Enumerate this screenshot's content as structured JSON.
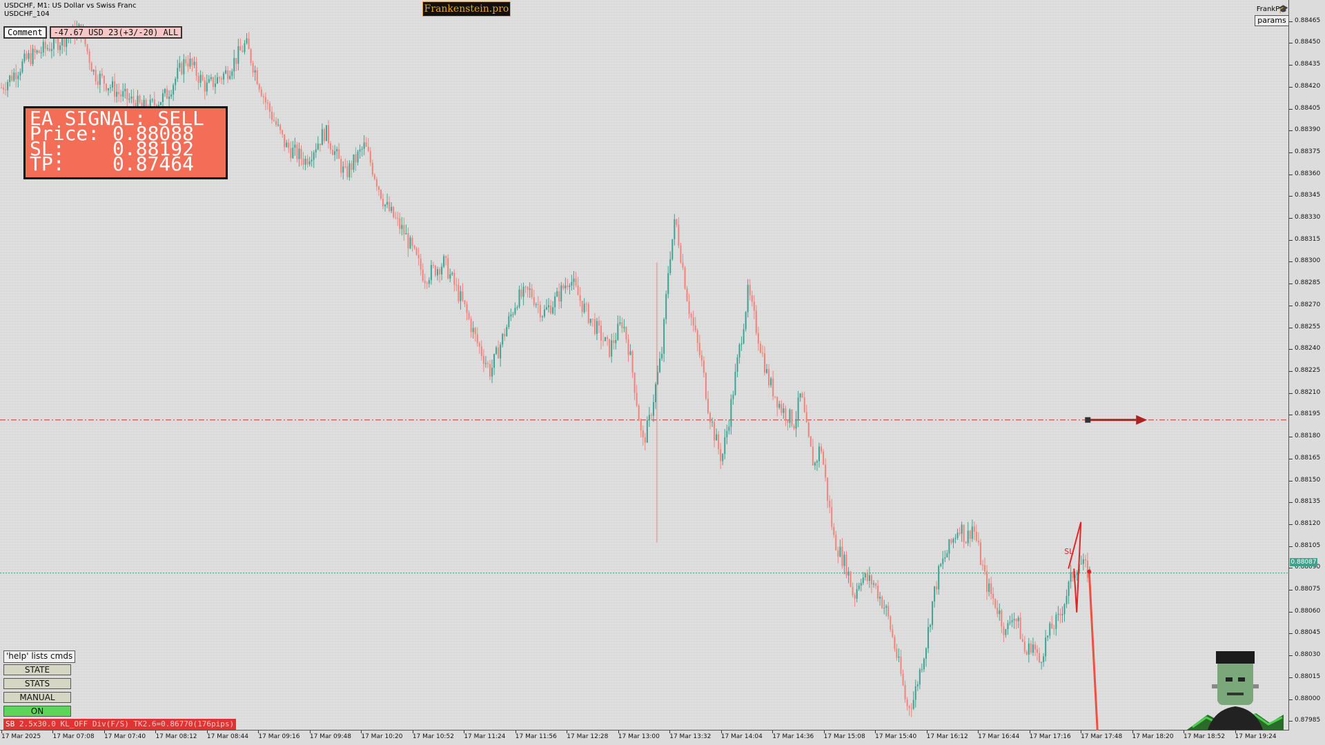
{
  "header": {
    "symbol_line": "USDCHF, M1:  US Dollar vs Swiss Franc",
    "ea_line": "USDCHF_104",
    "brand": "Frankenstein.pro",
    "frankpro": "FrankPro",
    "params_label": "params"
  },
  "comment": {
    "label": "Comment",
    "value": "-47.67 USD 23(+3/-20) ALL"
  },
  "signal": {
    "title": "EA SIGNAL: SELL",
    "price_label": "Price:",
    "price": "0.88088",
    "sl_label": "SL:",
    "sl": "0.88192",
    "tp_label": "TP:",
    "tp": "0.87464"
  },
  "controls": {
    "help": "'help' lists cmds",
    "state": "STATE",
    "stats": "STATS",
    "manual": "MANUAL",
    "on": "ON"
  },
  "status_bar": {
    "tag": "SB",
    "text": " 2.5x30.0 KL_OFF Div(F/S) TK2.6=0.86770(176pips)"
  },
  "chart_label": {
    "sl_marker": "SL"
  },
  "current_price_tag": "0.88087",
  "colors": {
    "up": "#3aa392",
    "down": "#f2837a",
    "sl_line": "#d62a2a",
    "price_line": "#2aa37a",
    "signal_bg": "#f46d56"
  },
  "chart_data": {
    "type": "candlestick",
    "symbol": "USDCHF",
    "timeframe": "M1",
    "y_ticks": [
      "0.88465",
      "0.88450",
      "0.88435",
      "0.88420",
      "0.88405",
      "0.88390",
      "0.88375",
      "0.88360",
      "0.88345",
      "0.88330",
      "0.88315",
      "0.88300",
      "0.88285",
      "0.88270",
      "0.88255",
      "0.88240",
      "0.88225",
      "0.88210",
      "0.88195",
      "0.88180",
      "0.88165",
      "0.88150",
      "0.88135",
      "0.88120",
      "0.88105",
      "0.88090",
      "0.88075",
      "0.88060",
      "0.88045",
      "0.88030",
      "0.88015",
      "0.88000",
      "0.87985"
    ],
    "x_ticks": [
      "17 Mar 2025",
      "17 Mar 07:08",
      "17 Mar 07:40",
      "17 Mar 08:12",
      "17 Mar 08:44",
      "17 Mar 09:16",
      "17 Mar 09:48",
      "17 Mar 10:20",
      "17 Mar 10:52",
      "17 Mar 11:24",
      "17 Mar 11:56",
      "17 Mar 12:28",
      "17 Mar 13:00",
      "17 Mar 13:32",
      "17 Mar 14:04",
      "17 Mar 14:36",
      "17 Mar 15:08",
      "17 Mar 15:40",
      "17 Mar 16:12",
      "17 Mar 16:44",
      "17 Mar 17:16",
      "17 Mar 17:48",
      "17 Mar 18:20",
      "17 Mar 18:52",
      "17 Mar 19:24"
    ],
    "ylim": [
      0.87979,
      0.8848
    ],
    "price_path": [
      [
        0,
        0.8842
      ],
      [
        0.02,
        0.8844
      ],
      [
        0.04,
        0.8845
      ],
      [
        0.06,
        0.8846
      ],
      [
        0.07,
        0.8843
      ],
      [
        0.09,
        0.88415
      ],
      [
        0.11,
        0.88405
      ],
      [
        0.125,
        0.88415
      ],
      [
        0.14,
        0.8844
      ],
      [
        0.155,
        0.8842
      ],
      [
        0.17,
        0.8843
      ],
      [
        0.185,
        0.8845
      ],
      [
        0.2,
        0.8841
      ],
      [
        0.215,
        0.8838
      ],
      [
        0.23,
        0.8837
      ],
      [
        0.245,
        0.8839
      ],
      [
        0.26,
        0.8836
      ],
      [
        0.275,
        0.8838
      ],
      [
        0.29,
        0.8834
      ],
      [
        0.305,
        0.8832
      ],
      [
        0.32,
        0.8829
      ],
      [
        0.335,
        0.883
      ],
      [
        0.35,
        0.8827
      ],
      [
        0.36,
        0.88245
      ],
      [
        0.37,
        0.88225
      ],
      [
        0.38,
        0.8825
      ],
      [
        0.39,
        0.88275
      ],
      [
        0.4,
        0.8828
      ],
      [
        0.41,
        0.88265
      ],
      [
        0.42,
        0.88275
      ],
      [
        0.43,
        0.8829
      ],
      [
        0.44,
        0.8827
      ],
      [
        0.45,
        0.88255
      ],
      [
        0.46,
        0.8824
      ],
      [
        0.47,
        0.8826
      ],
      [
        0.475,
        0.8824
      ],
      [
        0.48,
        0.8821
      ],
      [
        0.485,
        0.88175
      ],
      [
        0.49,
        0.8819
      ],
      [
        0.5,
        0.8824
      ],
      [
        0.505,
        0.883
      ],
      [
        0.51,
        0.8833
      ],
      [
        0.515,
        0.883
      ],
      [
        0.52,
        0.8827
      ],
      [
        0.53,
        0.8823
      ],
      [
        0.535,
        0.882
      ],
      [
        0.54,
        0.8818
      ],
      [
        0.545,
        0.88165
      ],
      [
        0.55,
        0.8819
      ],
      [
        0.56,
        0.8825
      ],
      [
        0.565,
        0.8828
      ],
      [
        0.57,
        0.8826
      ],
      [
        0.58,
        0.8822
      ],
      [
        0.59,
        0.882
      ],
      [
        0.6,
        0.8819
      ],
      [
        0.605,
        0.8821
      ],
      [
        0.61,
        0.8818
      ],
      [
        0.615,
        0.8816
      ],
      [
        0.62,
        0.88175
      ],
      [
        0.625,
        0.8814
      ],
      [
        0.63,
        0.8811
      ],
      [
        0.64,
        0.8809
      ],
      [
        0.645,
        0.8807
      ],
      [
        0.65,
        0.88085
      ],
      [
        0.66,
        0.8808
      ],
      [
        0.67,
        0.8806
      ],
      [
        0.675,
        0.8804
      ],
      [
        0.68,
        0.8802
      ],
      [
        0.685,
        0.87995
      ],
      [
        0.69,
        0.88
      ],
      [
        0.7,
        0.8804
      ],
      [
        0.705,
        0.8807
      ],
      [
        0.71,
        0.8809
      ],
      [
        0.715,
        0.881
      ],
      [
        0.72,
        0.8811
      ],
      [
        0.725,
        0.8812
      ],
      [
        0.73,
        0.8811
      ],
      [
        0.735,
        0.8812
      ],
      [
        0.74,
        0.881
      ],
      [
        0.745,
        0.8808
      ],
      [
        0.75,
        0.8807
      ],
      [
        0.755,
        0.8806
      ],
      [
        0.76,
        0.88045
      ],
      [
        0.765,
        0.8806
      ],
      [
        0.77,
        0.8805
      ],
      [
        0.775,
        0.8803
      ],
      [
        0.78,
        0.8804
      ],
      [
        0.785,
        0.88025
      ],
      [
        0.79,
        0.8804
      ],
      [
        0.795,
        0.8805
      ],
      [
        0.8,
        0.88055
      ],
      [
        0.805,
        0.8807
      ],
      [
        0.81,
        0.88085
      ],
      [
        0.815,
        0.88095
      ],
      [
        0.82,
        0.8809
      ],
      [
        0.825,
        0.88085
      ]
    ],
    "outlier_wick": {
      "t": 0.496,
      "low": 0.88108,
      "high": 0.883
    },
    "sl_level": 0.88192,
    "current_price": 0.88087,
    "plot_width_fraction": 0.84
  }
}
